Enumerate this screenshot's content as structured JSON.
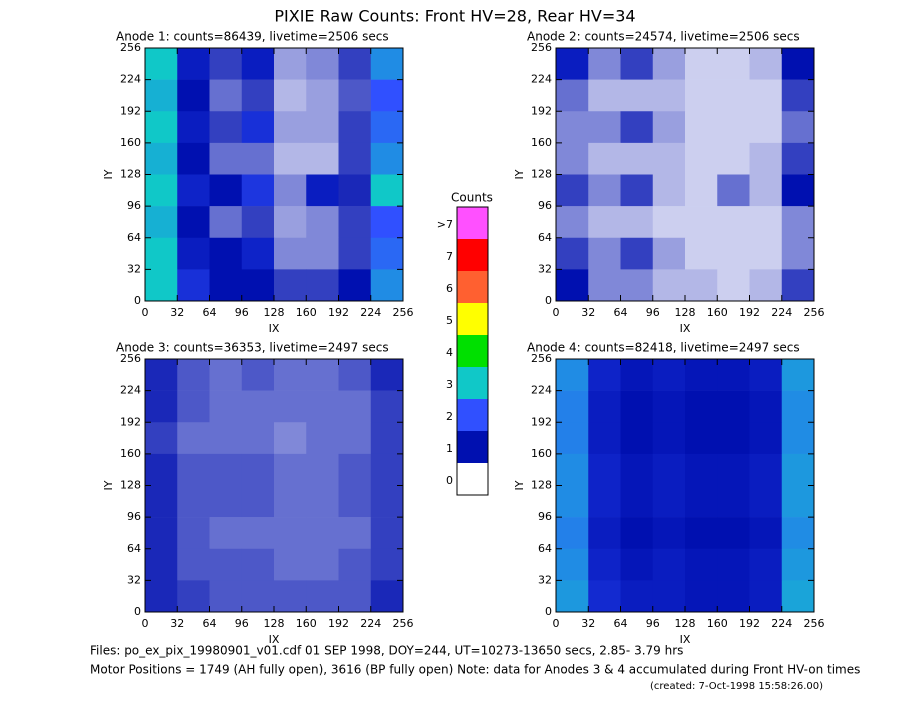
{
  "title": "PIXIE Raw Counts:  Front HV=28, Rear HV=34",
  "colorbar": {
    "title": "Counts",
    "labels": [
      ">7",
      "7",
      "6",
      "5",
      "4",
      "3",
      "2",
      "1",
      "0"
    ],
    "colors": [
      "#ff50ff",
      "#ff0000",
      "#ff6030",
      "#ffff00",
      "#00e000",
      "#10c8c8",
      "#3050ff",
      "#0010b0",
      "#ffffff"
    ]
  },
  "footer": {
    "files": "Files: po_ex_pix_19980901_v01.cdf    01 SEP 1998, DOY=244, UT=10273-13650 secs,  2.85- 3.79 hrs",
    "motor": "Motor Positions = 1749 (AH fully open), 3616 (BP fully open)    Note: data for Anodes 3 & 4 accumulated during Front HV-on times",
    "created": "(created:  7-Oct-1998 15:58:26.00)"
  },
  "chart_data": [
    {
      "type": "heatmap",
      "title": "Anode 1: counts=86439, livetime=2506 secs",
      "x_label": "IX",
      "y_label": "IY",
      "xlim": [
        0,
        256
      ],
      "ylim": [
        0,
        256
      ],
      "xticks": [
        0,
        32,
        64,
        96,
        128,
        160,
        192,
        224,
        256
      ],
      "yticks": [
        0,
        32,
        64,
        96,
        128,
        160,
        192,
        224,
        256
      ],
      "z": [
        [
          3,
          1.2,
          0.8,
          1.2,
          0.4,
          0.5,
          0.8,
          2.5
        ],
        [
          2.8,
          1,
          0.6,
          0.8,
          0.3,
          0.4,
          0.7,
          2
        ],
        [
          3,
          1.2,
          0.8,
          1.5,
          0.4,
          0.4,
          0.8,
          2.2
        ],
        [
          2.8,
          1,
          0.6,
          0.6,
          0.3,
          0.3,
          0.8,
          2.5
        ],
        [
          3,
          1.3,
          1,
          1.6,
          0.5,
          1.2,
          0.9,
          3
        ],
        [
          2.8,
          1,
          0.6,
          0.8,
          0.4,
          0.5,
          0.8,
          2
        ],
        [
          3,
          1.2,
          1,
          1.3,
          0.5,
          0.5,
          0.8,
          2.2
        ],
        [
          3,
          1.5,
          1,
          1,
          0.8,
          0.8,
          1,
          2.5
        ]
      ]
    },
    {
      "type": "heatmap",
      "title": "Anode 2: counts=24574, livetime=2506 secs",
      "x_label": "IX",
      "y_label": "IY",
      "xlim": [
        0,
        256
      ],
      "ylim": [
        0,
        256
      ],
      "xticks": [
        0,
        32,
        64,
        96,
        128,
        160,
        192,
        224,
        256
      ],
      "yticks": [
        0,
        32,
        64,
        96,
        128,
        160,
        192,
        224,
        256
      ],
      "z": [
        [
          1.2,
          0.5,
          0.8,
          0.4,
          0.2,
          0.2,
          0.3,
          1
        ],
        [
          0.6,
          0.3,
          0.3,
          0.3,
          0.2,
          0.2,
          0.2,
          0.8
        ],
        [
          0.5,
          0.5,
          0.8,
          0.4,
          0.2,
          0.2,
          0.2,
          0.6
        ],
        [
          0.5,
          0.3,
          0.3,
          0.3,
          0.2,
          0.2,
          0.3,
          0.8
        ],
        [
          0.8,
          0.5,
          0.8,
          0.3,
          0.2,
          0.6,
          0.3,
          1
        ],
        [
          0.5,
          0.3,
          0.3,
          0.2,
          0.2,
          0.2,
          0.2,
          0.5
        ],
        [
          0.8,
          0.5,
          0.8,
          0.4,
          0.2,
          0.2,
          0.2,
          0.5
        ],
        [
          1,
          0.5,
          0.5,
          0.3,
          0.3,
          0.2,
          0.3,
          0.8
        ]
      ]
    },
    {
      "type": "heatmap",
      "title": "Anode 3: counts=36353, livetime=2497 secs",
      "x_label": "IX",
      "y_label": "IY",
      "xlim": [
        0,
        256
      ],
      "ylim": [
        0,
        256
      ],
      "xticks": [
        0,
        32,
        64,
        96,
        128,
        160,
        192,
        224,
        256
      ],
      "yticks": [
        0,
        32,
        64,
        96,
        128,
        160,
        192,
        224,
        256
      ],
      "z": [
        [
          0.9,
          0.7,
          0.6,
          0.7,
          0.6,
          0.6,
          0.7,
          0.9
        ],
        [
          0.9,
          0.7,
          0.6,
          0.6,
          0.6,
          0.6,
          0.6,
          0.8
        ],
        [
          0.8,
          0.6,
          0.6,
          0.6,
          0.5,
          0.6,
          0.6,
          0.8
        ],
        [
          0.9,
          0.7,
          0.7,
          0.7,
          0.6,
          0.6,
          0.7,
          0.8
        ],
        [
          0.9,
          0.7,
          0.7,
          0.7,
          0.6,
          0.6,
          0.7,
          0.8
        ],
        [
          0.9,
          0.7,
          0.6,
          0.6,
          0.6,
          0.6,
          0.6,
          0.8
        ],
        [
          0.9,
          0.7,
          0.7,
          0.7,
          0.6,
          0.6,
          0.7,
          0.8
        ],
        [
          0.9,
          0.8,
          0.7,
          0.7,
          0.7,
          0.7,
          0.7,
          0.9
        ]
      ]
    },
    {
      "type": "heatmap",
      "title": "Anode 4: counts=82418, livetime=2497 secs",
      "x_label": "IX",
      "y_label": "IY",
      "xlim": [
        0,
        256
      ],
      "ylim": [
        0,
        256
      ],
      "xticks": [
        0,
        32,
        64,
        96,
        128,
        160,
        192,
        224,
        256
      ],
      "yticks": [
        0,
        32,
        64,
        96,
        128,
        160,
        192,
        224,
        256
      ],
      "z": [
        [
          2.5,
          1.3,
          1.1,
          1.2,
          1.1,
          1.1,
          1.2,
          2.6
        ],
        [
          2.4,
          1.2,
          1,
          1.1,
          1,
          1,
          1.1,
          2.5
        ],
        [
          2.4,
          1.2,
          1,
          1.1,
          1,
          1,
          1.1,
          2.5
        ],
        [
          2.5,
          1.3,
          1.1,
          1.2,
          1.1,
          1.1,
          1.2,
          2.6
        ],
        [
          2.5,
          1.3,
          1.1,
          1.2,
          1.1,
          1.1,
          1.2,
          2.6
        ],
        [
          2.4,
          1.2,
          1,
          1.1,
          1,
          1,
          1.1,
          2.5
        ],
        [
          2.5,
          1.3,
          1.1,
          1.2,
          1.1,
          1.1,
          1.2,
          2.6
        ],
        [
          2.6,
          1.4,
          1.2,
          1.2,
          1.1,
          1.1,
          1.2,
          2.7
        ]
      ]
    }
  ]
}
